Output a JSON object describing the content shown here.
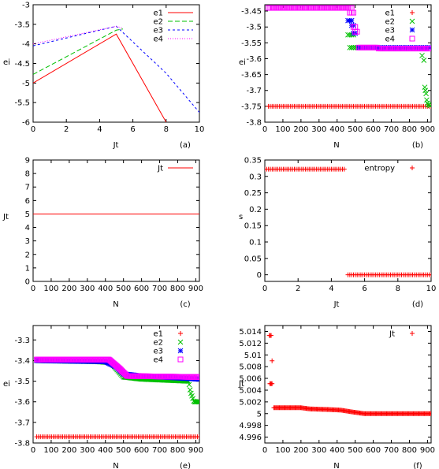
{
  "chart_data": [
    {
      "panel_label": "(a)",
      "type": "line",
      "xlabel": "Jt",
      "ylabel": "ei",
      "xlim": [
        0,
        10
      ],
      "ylim": [
        -6,
        -3
      ],
      "xticks": [
        0,
        2,
        4,
        6,
        8,
        10
      ],
      "yticks": [
        -6,
        -5.5,
        -5,
        -4.5,
        -4,
        -3.5,
        -3
      ],
      "legend_position": "top-right",
      "series": [
        {
          "name": "e1",
          "color": "#ff0000",
          "dash": "solid",
          "points": [
            [
              0,
              -5.0
            ],
            [
              5,
              -3.75
            ],
            [
              8,
              -6.0
            ]
          ]
        },
        {
          "name": "e2",
          "color": "#00c000",
          "dash": "6,3",
          "points": [
            [
              0,
              -4.78
            ],
            [
              5,
              -3.65
            ],
            [
              5.4,
              -3.62
            ]
          ]
        },
        {
          "name": "e3",
          "color": "#0000ff",
          "dash": "3,3",
          "points": [
            [
              0,
              -4.05
            ],
            [
              5,
              -3.55
            ],
            [
              8,
              -4.75
            ],
            [
              10,
              -5.75
            ]
          ]
        },
        {
          "name": "e4",
          "color": "#ff00ff",
          "dash": "1,2",
          "points": [
            [
              0,
              -4.0
            ],
            [
              5,
              -3.55
            ],
            [
              5.4,
              -3.6
            ]
          ]
        }
      ]
    },
    {
      "panel_label": "(b)",
      "type": "scatter",
      "xlabel": "N",
      "ylabel": "ei",
      "xlim": [
        0,
        920
      ],
      "ylim": [
        -3.8,
        -3.43
      ],
      "xticks": [
        0,
        100,
        200,
        300,
        400,
        500,
        600,
        700,
        800,
        900
      ],
      "yticks": [
        -3.8,
        -3.75,
        -3.7,
        -3.65,
        -3.6,
        -3.55,
        -3.5,
        -3.45
      ],
      "legend_position": "top-right",
      "series": [
        {
          "name": "e1",
          "color": "#ff0000",
          "marker": "plus",
          "segments": [
            {
              "x": [
                20,
                920
              ],
              "y": -3.75
            }
          ]
        },
        {
          "name": "e2",
          "color": "#00c000",
          "marker": "cross",
          "segments": [
            {
              "x": [
                460,
                500
              ],
              "y": -3.525
            },
            {
              "x": [
                470,
                520
              ],
              "y": -3.565
            },
            {
              "x": [
                520,
                620
              ],
              "y": -3.565
            }
          ],
          "points": [
            [
              870,
              -3.59
            ],
            [
              880,
              -3.605
            ],
            [
              885,
              -3.69
            ],
            [
              888,
              -3.7
            ],
            [
              892,
              -3.71
            ],
            [
              896,
              -3.73
            ],
            [
              900,
              -3.74
            ],
            [
              905,
              -3.745
            ],
            [
              910,
              -3.745
            ],
            [
              915,
              -3.748
            ]
          ]
        },
        {
          "name": "e3",
          "color": "#0000ff",
          "marker": "star",
          "segments": [
            {
              "x": [
                460,
                490
              ],
              "y": -3.48
            },
            {
              "x": [
                480,
                500
              ],
              "y": -3.495
            },
            {
              "x": [
                490,
                510
              ],
              "y": -3.52
            },
            {
              "x": [
                520,
                920
              ],
              "y": -3.565
            }
          ]
        },
        {
          "name": "e4",
          "color": "#ff00ff",
          "marker": "square",
          "segments": [
            {
              "x": [
                20,
                480
              ],
              "y": -3.44
            },
            {
              "x": [
                470,
                500
              ],
              "y": -3.455
            },
            {
              "x": [
                490,
                510
              ],
              "y": -3.5
            },
            {
              "x": [
                500,
                520
              ],
              "y": -3.515
            },
            {
              "x": [
                520,
                630
              ],
              "y": -3.565
            },
            {
              "x": [
                630,
                920
              ],
              "y": -3.568
            }
          ]
        }
      ]
    },
    {
      "panel_label": "(c)",
      "type": "line",
      "xlabel": "N",
      "ylabel": "Jt",
      "xlim": [
        0,
        920
      ],
      "ylim": [
        0,
        9
      ],
      "xticks": [
        0,
        100,
        200,
        300,
        400,
        500,
        600,
        700,
        800,
        900
      ],
      "yticks": [
        0,
        1,
        2,
        3,
        4,
        5,
        6,
        7,
        8,
        9
      ],
      "legend_position": "top-right",
      "series": [
        {
          "name": "Jt",
          "color": "#ff0000",
          "dash": "solid",
          "points": [
            [
              0,
              5
            ],
            [
              920,
              5
            ]
          ]
        }
      ]
    },
    {
      "panel_label": "(d)",
      "type": "scatter",
      "xlabel": "Jt",
      "ylabel": "s",
      "xlim": [
        0,
        10
      ],
      "ylim": [
        -0.02,
        0.35
      ],
      "xticks": [
        0,
        2,
        4,
        6,
        8,
        10
      ],
      "yticks": [
        0,
        0.05,
        0.1,
        0.15,
        0.2,
        0.25,
        0.3,
        0.35
      ],
      "legend_position": "top-right",
      "series": [
        {
          "name": "entropy",
          "color": "#ff0000",
          "marker": "plus",
          "segments": [
            {
              "x": [
                0,
                4.85
              ],
              "y": 0.322
            },
            {
              "x": [
                5.0,
                10
              ],
              "y": 0.0
            }
          ]
        }
      ]
    },
    {
      "panel_label": "(e)",
      "type": "scatter",
      "xlabel": "N",
      "ylabel": "ei",
      "xlim": [
        0,
        920
      ],
      "ylim": [
        -3.8,
        -3.23
      ],
      "xticks": [
        0,
        100,
        200,
        300,
        400,
        500,
        600,
        700,
        800,
        900
      ],
      "yticks": [
        -3.8,
        -3.7,
        -3.6,
        -3.5,
        -3.4,
        -3.3
      ],
      "legend_position": "top-right",
      "series": [
        {
          "name": "e1",
          "color": "#ff0000",
          "marker": "plus",
          "segments": [
            {
              "x": [
                20,
                920
              ],
              "y": -3.77
            }
          ]
        },
        {
          "name": "e2",
          "color": "#00c000",
          "marker": "cross",
          "curve": [
            [
              20,
              -3.4
            ],
            [
              350,
              -3.405
            ],
            [
              430,
              -3.41
            ],
            [
              470,
              -3.45
            ],
            [
              500,
              -3.48
            ],
            [
              600,
              -3.49
            ],
            [
              860,
              -3.5
            ],
            [
              870,
              -3.55
            ],
            [
              890,
              -3.6
            ],
            [
              920,
              -3.6
            ]
          ]
        },
        {
          "name": "e3",
          "color": "#0000ff",
          "marker": "star",
          "curve": [
            [
              20,
              -3.4
            ],
            [
              400,
              -3.405
            ],
            [
              460,
              -3.43
            ],
            [
              500,
              -3.465
            ],
            [
              600,
              -3.475
            ],
            [
              920,
              -3.49
            ]
          ]
        },
        {
          "name": "e4",
          "color": "#ff00ff",
          "marker": "square",
          "curve": [
            [
              20,
              -3.395
            ],
            [
              420,
              -3.395
            ],
            [
              480,
              -3.44
            ],
            [
              520,
              -3.475
            ],
            [
              920,
              -3.48
            ]
          ]
        }
      ]
    },
    {
      "panel_label": "(f)",
      "type": "scatter",
      "xlabel": "N",
      "ylabel": "Jt",
      "xlim": [
        0,
        920
      ],
      "ylim": [
        4.995,
        5.015
      ],
      "xticks": [
        0,
        100,
        200,
        300,
        400,
        500,
        600,
        700,
        800,
        900
      ],
      "ytick_labels": [
        "4.996",
        "4.998",
        "5",
        "5.002",
        "5.004",
        "5.006",
        "5.008",
        "5.01",
        "5.012",
        "5.014"
      ],
      "yticks": [
        4.996,
        4.998,
        5.0,
        5.002,
        5.004,
        5.006,
        5.008,
        5.01,
        5.012,
        5.014
      ],
      "legend_position": "top-right",
      "series": [
        {
          "name": "Jt",
          "color": "#ff0000",
          "marker": "plus",
          "points": [
            [
              25,
              5.0133
            ],
            [
              30,
              5.0133
            ],
            [
              35,
              5.0133
            ],
            [
              40,
              5.009
            ],
            [
              28,
              5.0051
            ],
            [
              32,
              5.0051
            ],
            [
              36,
              5.0051
            ],
            [
              40,
              5.0051
            ]
          ],
          "curve": [
            [
              50,
              5.001
            ],
            [
              200,
              5.001
            ],
            [
              250,
              5.0008
            ],
            [
              350,
              5.0007
            ],
            [
              420,
              5.0006
            ],
            [
              480,
              5.0003
            ],
            [
              550,
              5.0
            ],
            [
              920,
              5.0
            ]
          ]
        }
      ]
    }
  ]
}
